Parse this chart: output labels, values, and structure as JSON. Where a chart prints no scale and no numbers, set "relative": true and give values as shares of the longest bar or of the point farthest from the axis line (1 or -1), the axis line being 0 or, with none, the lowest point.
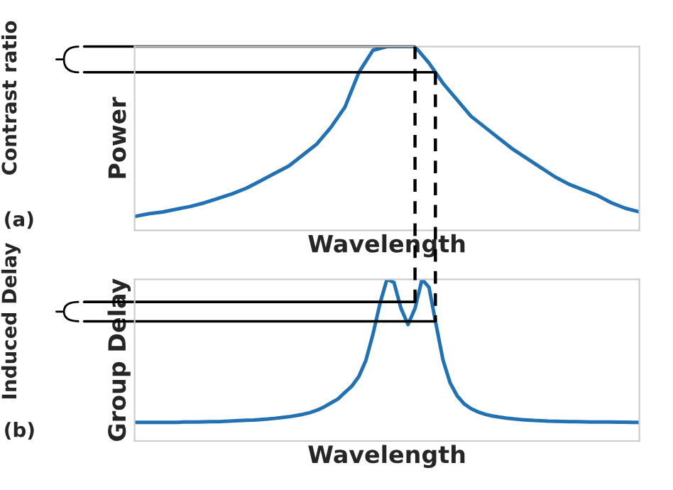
{
  "chart_data": [
    {
      "type": "line",
      "relative": true,
      "categories": [
        null,
        null,
        null,
        null,
        null,
        null,
        null,
        null,
        null,
        null,
        null,
        null,
        null,
        null,
        null,
        null,
        null,
        null,
        null,
        null,
        null,
        null,
        null,
        null,
        null,
        null,
        null,
        null,
        null,
        null,
        null,
        null,
        null,
        null,
        null,
        null,
        null
      ],
      "series": [
        {
          "color": "#2271b3",
          "values": [
            0.075,
            0.09,
            0.1,
            0.115,
            0.13,
            0.15,
            0.175,
            0.2,
            0.23,
            0.27,
            0.31,
            0.35,
            0.41,
            0.47,
            0.56,
            0.67,
            0.86,
            0.98,
            1.0,
            1.0,
            1.0,
            0.91,
            0.8,
            0.71,
            0.62,
            0.56,
            0.5,
            0.44,
            0.39,
            0.34,
            0.29,
            0.25,
            0.22,
            0.19,
            0.15,
            0.12,
            0.1
          ]
        }
      ],
      "xlabel": "Wavelength",
      "ylabel": "Power",
      "annotations": [
        "(a)"
      ],
      "ref_lines": [
        {
          "axis": "y",
          "value": 1.0,
          "label": "Contrast ratio"
        },
        {
          "axis": "y",
          "value": 0.86
        }
      ],
      "tick_labels": false
    },
    {
      "type": "line",
      "relative": true,
      "categories": [
        null,
        null,
        null,
        null,
        null,
        null,
        null,
        null,
        null,
        null,
        null,
        null,
        null,
        null,
        null,
        null,
        null,
        null,
        null,
        null,
        null,
        null,
        null,
        null,
        null,
        null,
        null,
        null,
        null,
        null,
        null,
        null,
        null,
        null,
        null,
        null,
        null,
        null,
        null,
        null,
        null,
        null,
        null,
        null,
        null,
        null,
        null,
        null,
        null,
        null,
        null,
        null,
        null,
        null,
        null,
        null,
        null,
        null,
        null,
        null,
        null,
        null,
        null,
        null,
        null,
        null,
        null,
        null,
        null,
        null,
        null,
        null,
        null
      ],
      "series": [
        {
          "color": "#2271b3",
          "values": [
            0.115,
            0.115,
            0.115,
            0.115,
            0.115,
            0.115,
            0.115,
            0.117,
            0.117,
            0.118,
            0.119,
            0.12,
            0.12,
            0.122,
            0.124,
            0.126,
            0.128,
            0.13,
            0.133,
            0.136,
            0.14,
            0.145,
            0.15,
            0.157,
            0.165,
            0.175,
            0.19,
            0.21,
            0.235,
            0.26,
            0.3,
            0.34,
            0.4,
            0.5,
            0.66,
            0.85,
            1.0,
            0.98,
            0.82,
            0.72,
            0.82,
            1.0,
            0.95,
            0.72,
            0.5,
            0.36,
            0.28,
            0.23,
            0.2,
            0.18,
            0.165,
            0.155,
            0.148,
            0.142,
            0.137,
            0.133,
            0.13,
            0.127,
            0.125,
            0.123,
            0.122,
            0.121,
            0.12,
            0.12,
            0.119,
            0.118,
            0.118,
            0.117,
            0.117,
            0.116,
            0.116,
            0.115,
            0.115
          ]
        }
      ],
      "xlabel": "Wavelength",
      "ylabel": "Group Delay",
      "annotations": [
        "(b)"
      ],
      "ref_lines": [
        {
          "axis": "y",
          "value": 0.86,
          "label": "Induced Delay"
        },
        {
          "axis": "y",
          "value": 0.74
        }
      ],
      "tick_labels": false
    }
  ]
}
